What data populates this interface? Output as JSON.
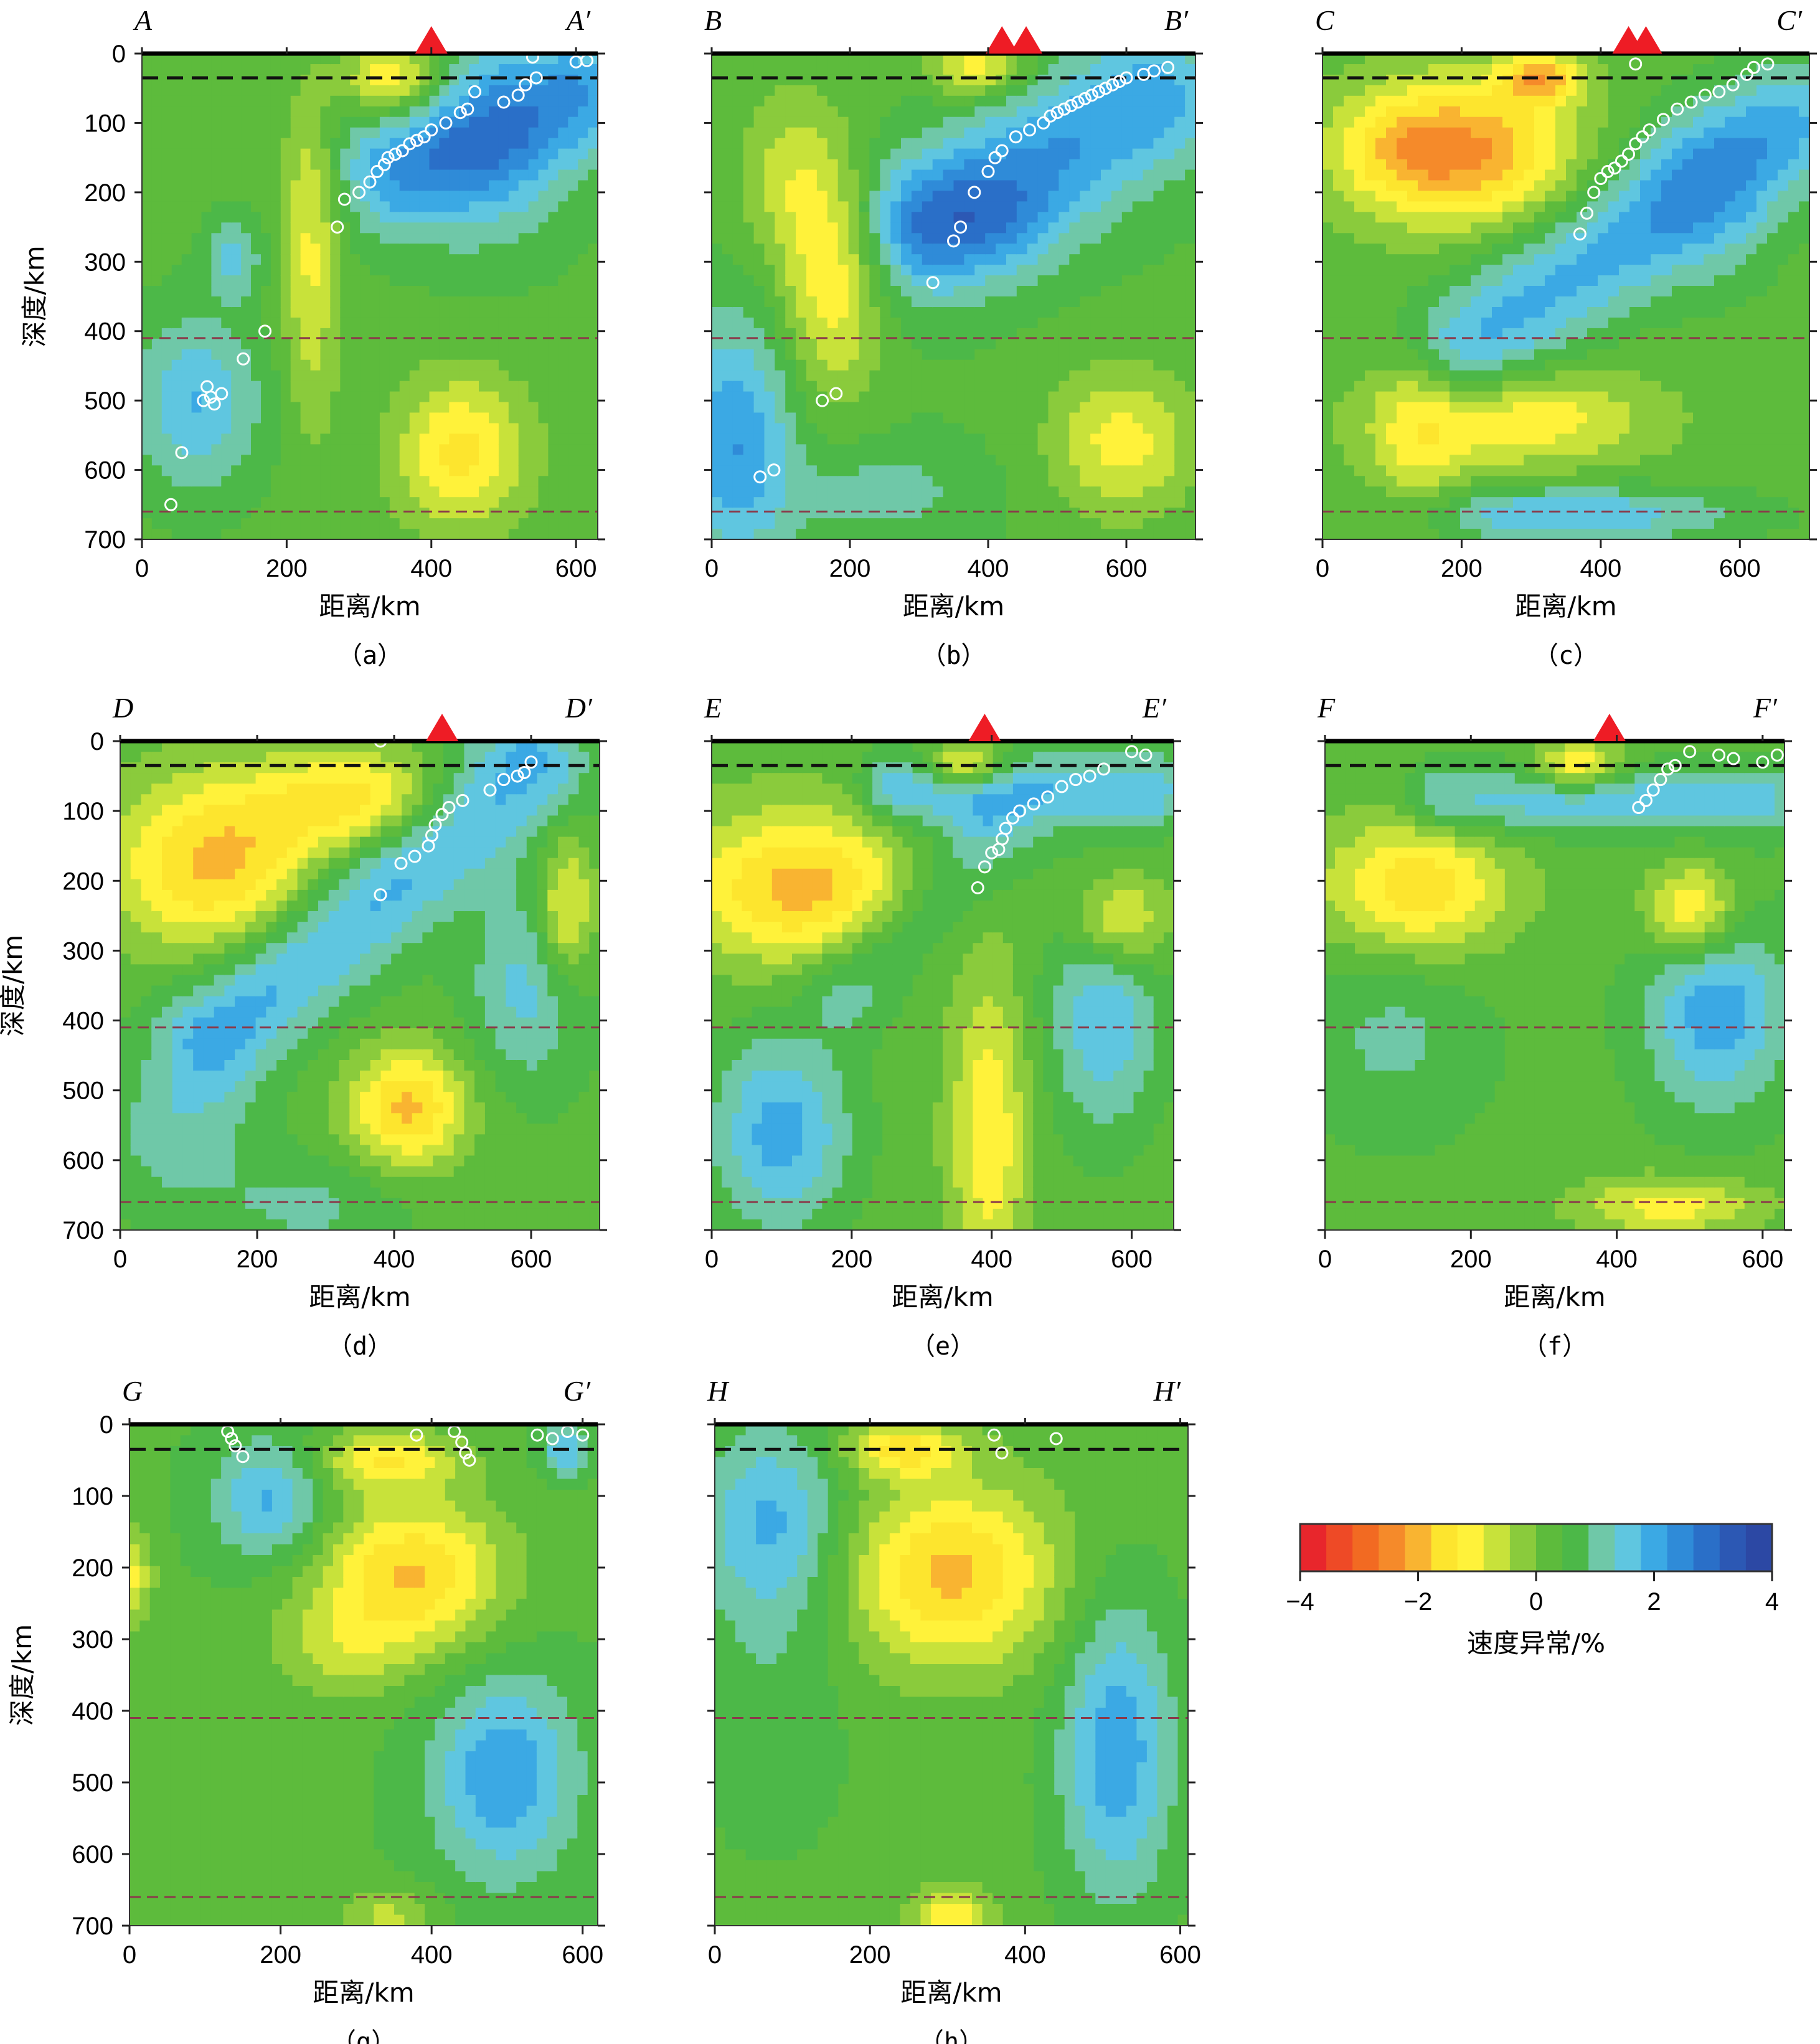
{
  "figure": {
    "xlabel": "距离/km",
    "ylabel": "深度/km",
    "colorbar": {
      "label": "速度异常/%",
      "ticks": [
        "-4",
        "-2",
        "0",
        "2",
        "4"
      ],
      "min": -4,
      "max": 4,
      "colors": [
        "#e8262c",
        "#ee4a26",
        "#f26a22",
        "#f58a2a",
        "#f9b431",
        "#fde52e",
        "#fff23a",
        "#c8e23a",
        "#8acb3c",
        "#5dbb3c",
        "#4cb848",
        "#6fc8a8",
        "#5fc6e0",
        "#3ba9e4",
        "#2f8bd8",
        "#2a6fc8",
        "#2c58b4",
        "#2c48a4"
      ]
    }
  },
  "chart_data": [
    {
      "type": "heatmap",
      "caption": "（a）",
      "left_label": "A",
      "right_label": "A′",
      "xlabel": "距离/km",
      "ylabel": "深度/km",
      "xlim": [
        0,
        630
      ],
      "ylim": [
        700,
        0
      ],
      "xticks": [
        "0",
        "200",
        "400",
        "600"
      ],
      "yticks": [
        "0",
        "100",
        "200",
        "300",
        "400",
        "500",
        "600",
        "700"
      ],
      "ylabel_shown": true,
      "reference_depths": [
        35,
        410,
        660
      ],
      "volcanoes": [
        400
      ],
      "events": [
        [
          540,
          5
        ],
        [
          600,
          12
        ],
        [
          615,
          10
        ],
        [
          545,
          35
        ],
        [
          530,
          45
        ],
        [
          520,
          60
        ],
        [
          500,
          70
        ],
        [
          460,
          55
        ],
        [
          450,
          80
        ],
        [
          440,
          85
        ],
        [
          420,
          100
        ],
        [
          400,
          110
        ],
        [
          390,
          120
        ],
        [
          380,
          125
        ],
        [
          370,
          130
        ],
        [
          360,
          140
        ],
        [
          350,
          145
        ],
        [
          340,
          150
        ],
        [
          335,
          160
        ],
        [
          325,
          170
        ],
        [
          315,
          185
        ],
        [
          300,
          200
        ],
        [
          280,
          210
        ],
        [
          270,
          250
        ],
        [
          170,
          400
        ],
        [
          140,
          440
        ],
        [
          110,
          490
        ],
        [
          95,
          495
        ],
        [
          100,
          505
        ],
        [
          90,
          480
        ],
        [
          85,
          500
        ],
        [
          55,
          575
        ],
        [
          40,
          650
        ]
      ]
    },
    {
      "type": "heatmap",
      "caption": "（b）",
      "left_label": "B",
      "right_label": "B′",
      "xlabel": "距离/km",
      "ylabel": "深度/km",
      "xlim": [
        0,
        700
      ],
      "ylim": [
        700,
        0
      ],
      "xticks": [
        "0",
        "200",
        "400",
        "600"
      ],
      "yticks": [],
      "ylabel_shown": false,
      "reference_depths": [
        35,
        410,
        660
      ],
      "volcanoes": [
        420,
        455
      ],
      "events": [
        [
          660,
          20
        ],
        [
          640,
          25
        ],
        [
          625,
          30
        ],
        [
          600,
          35
        ],
        [
          590,
          40
        ],
        [
          580,
          45
        ],
        [
          570,
          50
        ],
        [
          560,
          55
        ],
        [
          550,
          60
        ],
        [
          540,
          65
        ],
        [
          530,
          70
        ],
        [
          520,
          75
        ],
        [
          510,
          80
        ],
        [
          500,
          85
        ],
        [
          490,
          90
        ],
        [
          480,
          100
        ],
        [
          460,
          110
        ],
        [
          440,
          120
        ],
        [
          420,
          140
        ],
        [
          410,
          150
        ],
        [
          400,
          170
        ],
        [
          380,
          200
        ],
        [
          360,
          250
        ],
        [
          350,
          270
        ],
        [
          320,
          330
        ],
        [
          180,
          490
        ],
        [
          160,
          500
        ],
        [
          90,
          600
        ],
        [
          70,
          610
        ]
      ]
    },
    {
      "type": "heatmap",
      "caption": "（c）",
      "left_label": "C",
      "right_label": "C′",
      "xlabel": "距离/km",
      "ylabel": "深度/km",
      "xlim": [
        0,
        700
      ],
      "ylim": [
        700,
        0
      ],
      "xticks": [
        "0",
        "200",
        "400",
        "600"
      ],
      "yticks": [],
      "ylabel_shown": false,
      "reference_depths": [
        35,
        410,
        660
      ],
      "volcanoes": [
        440,
        465
      ],
      "events": [
        [
          450,
          15
        ],
        [
          640,
          15
        ],
        [
          620,
          20
        ],
        [
          610,
          30
        ],
        [
          590,
          45
        ],
        [
          570,
          55
        ],
        [
          550,
          60
        ],
        [
          530,
          70
        ],
        [
          510,
          80
        ],
        [
          490,
          95
        ],
        [
          470,
          110
        ],
        [
          460,
          120
        ],
        [
          450,
          130
        ],
        [
          440,
          145
        ],
        [
          430,
          155
        ],
        [
          420,
          165
        ],
        [
          410,
          170
        ],
        [
          400,
          180
        ],
        [
          390,
          200
        ],
        [
          380,
          230
        ],
        [
          370,
          260
        ]
      ]
    },
    {
      "type": "heatmap",
      "caption": "（d）",
      "left_label": "D",
      "right_label": "D′",
      "xlabel": "距离/km",
      "ylabel": "深度/km",
      "xlim": [
        0,
        700
      ],
      "ylim": [
        700,
        0
      ],
      "xticks": [
        "0",
        "200",
        "400",
        "600"
      ],
      "yticks": [
        "0",
        "100",
        "200",
        "300",
        "400",
        "500",
        "600",
        "700"
      ],
      "ylabel_shown": true,
      "reference_depths": [
        35,
        410,
        660
      ],
      "volcanoes": [
        470
      ],
      "events": [
        [
          380,
          0
        ],
        [
          600,
          30
        ],
        [
          590,
          45
        ],
        [
          580,
          50
        ],
        [
          560,
          55
        ],
        [
          540,
          70
        ],
        [
          500,
          85
        ],
        [
          480,
          95
        ],
        [
          470,
          105
        ],
        [
          460,
          120
        ],
        [
          455,
          135
        ],
        [
          450,
          150
        ],
        [
          430,
          165
        ],
        [
          410,
          175
        ],
        [
          380,
          220
        ]
      ]
    },
    {
      "type": "heatmap",
      "caption": "（e）",
      "left_label": "E",
      "right_label": "E′",
      "xlabel": "距离/km",
      "ylabel": "深度/km",
      "xlim": [
        0,
        660
      ],
      "ylim": [
        700,
        0
      ],
      "xticks": [
        "0",
        "200",
        "400",
        "600"
      ],
      "yticks": [],
      "ylabel_shown": false,
      "reference_depths": [
        35,
        410,
        660
      ],
      "volcanoes": [
        390
      ],
      "events": [
        [
          600,
          15
        ],
        [
          620,
          20
        ],
        [
          560,
          40
        ],
        [
          540,
          50
        ],
        [
          520,
          55
        ],
        [
          500,
          65
        ],
        [
          480,
          80
        ],
        [
          460,
          90
        ],
        [
          440,
          100
        ],
        [
          430,
          110
        ],
        [
          420,
          125
        ],
        [
          415,
          140
        ],
        [
          410,
          155
        ],
        [
          400,
          160
        ],
        [
          390,
          180
        ],
        [
          380,
          210
        ]
      ]
    },
    {
      "type": "heatmap",
      "caption": "（f）",
      "left_label": "F",
      "right_label": "F′",
      "xlabel": "距离/km",
      "ylabel": "深度/km",
      "xlim": [
        0,
        630
      ],
      "ylim": [
        700,
        0
      ],
      "xticks": [
        "0",
        "200",
        "400",
        "600"
      ],
      "yticks": [],
      "ylabel_shown": false,
      "reference_depths": [
        35,
        410,
        660
      ],
      "volcanoes": [
        390
      ],
      "events": [
        [
          500,
          15
        ],
        [
          540,
          20
        ],
        [
          560,
          25
        ],
        [
          600,
          30
        ],
        [
          620,
          20
        ],
        [
          480,
          35
        ],
        [
          470,
          40
        ],
        [
          460,
          55
        ],
        [
          450,
          70
        ],
        [
          440,
          85
        ],
        [
          430,
          95
        ]
      ]
    },
    {
      "type": "heatmap",
      "caption": "（g）",
      "left_label": "G",
      "right_label": "G′",
      "xlabel": "距离/km",
      "ylabel": "深度/km",
      "xlim": [
        0,
        620
      ],
      "ylim": [
        700,
        0
      ],
      "xticks": [
        "0",
        "200",
        "400",
        "600"
      ],
      "yticks": [
        "0",
        "100",
        "200",
        "300",
        "400",
        "500",
        "600",
        "700"
      ],
      "ylabel_shown": true,
      "reference_depths": [
        35,
        410,
        660
      ],
      "volcanoes": [],
      "events": [
        [
          130,
          10
        ],
        [
          135,
          20
        ],
        [
          140,
          30
        ],
        [
          150,
          45
        ],
        [
          380,
          15
        ],
        [
          430,
          10
        ],
        [
          440,
          25
        ],
        [
          445,
          40
        ],
        [
          450,
          50
        ],
        [
          540,
          15
        ],
        [
          560,
          20
        ],
        [
          580,
          10
        ],
        [
          600,
          15
        ]
      ]
    },
    {
      "type": "heatmap",
      "caption": "（h）",
      "left_label": "H",
      "right_label": "H′",
      "xlabel": "距离/km",
      "ylabel": "深度/km",
      "xlim": [
        0,
        610
      ],
      "ylim": [
        700,
        0
      ],
      "xticks": [
        "0",
        "200",
        "400",
        "600"
      ],
      "yticks": [],
      "ylabel_shown": false,
      "reference_depths": [
        35,
        410,
        660
      ],
      "volcanoes": [],
      "events": [
        [
          360,
          15
        ],
        [
          370,
          40
        ],
        [
          440,
          20
        ]
      ]
    }
  ]
}
